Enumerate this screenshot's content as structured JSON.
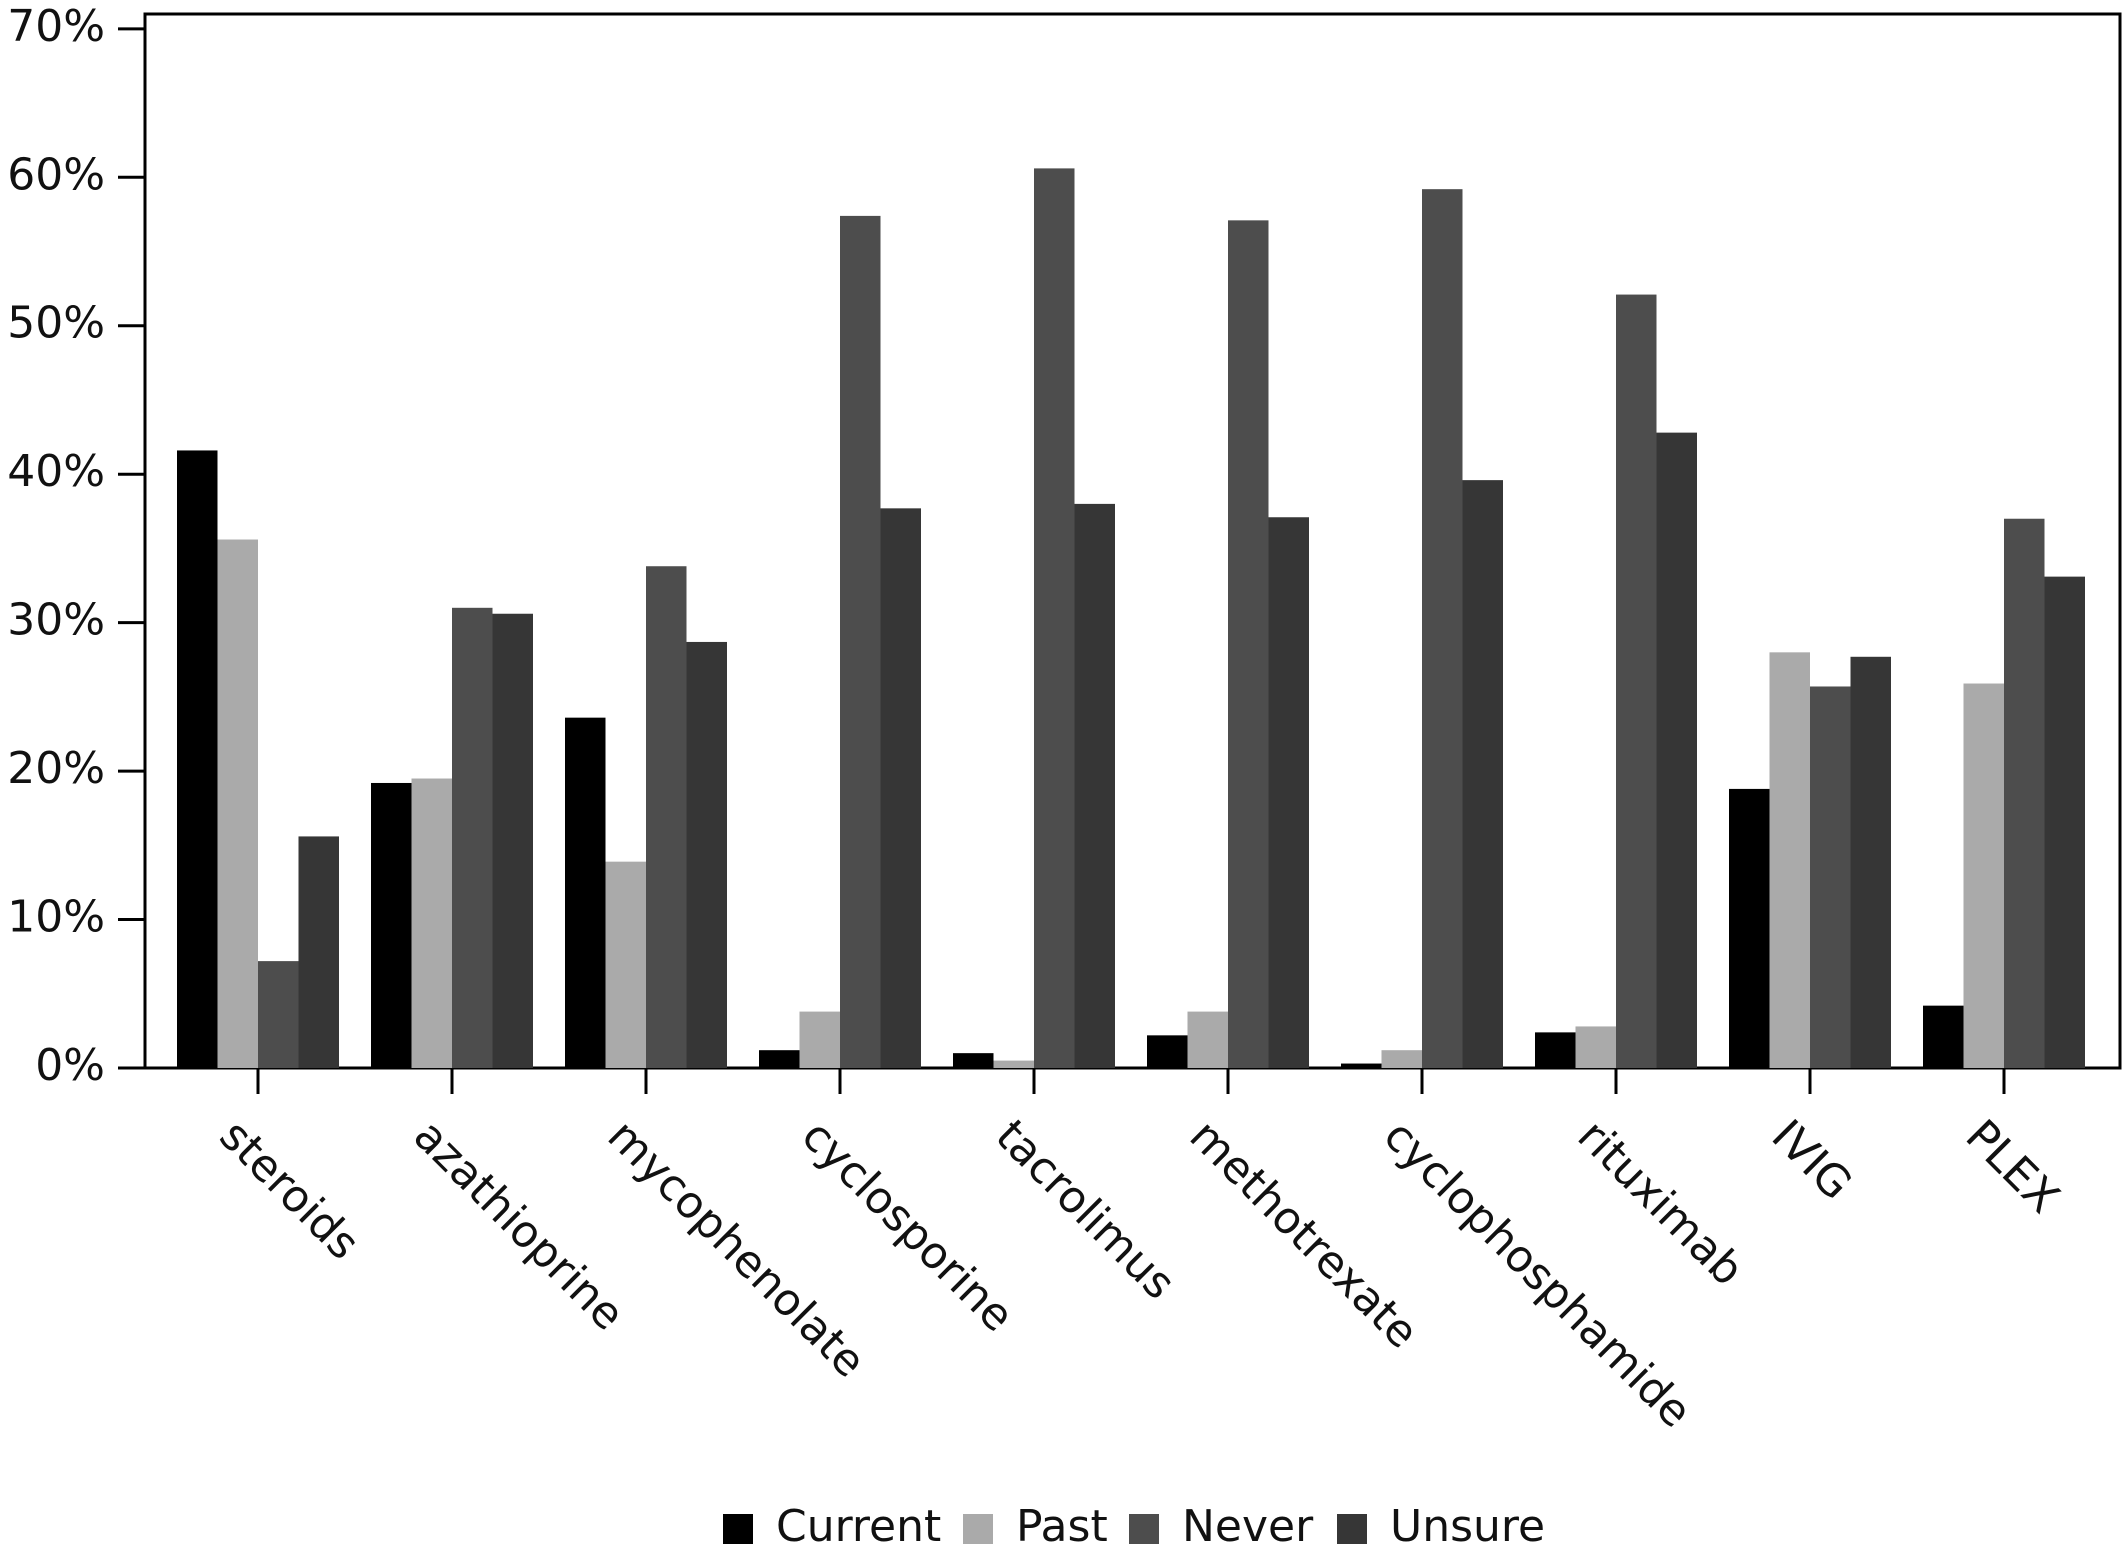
{
  "chart_data": {
    "type": "bar",
    "categories": [
      "steroids",
      "azathioprine",
      "mycophenolate",
      "cyclosporine",
      "tacrolimus",
      "methotrexate",
      "cyclophosphamide",
      "rituximab",
      "IVIG",
      "PLEX"
    ],
    "series": [
      {
        "name": "Current",
        "color": "#000000",
        "values": [
          41.6,
          19.2,
          23.6,
          1.2,
          1.0,
          2.2,
          0.3,
          2.4,
          18.8,
          4.2
        ]
      },
      {
        "name": "Past",
        "color": "#aaaaaa",
        "values": [
          35.6,
          19.5,
          13.9,
          3.8,
          0.5,
          3.8,
          1.2,
          2.8,
          28.0,
          25.9
        ]
      },
      {
        "name": "Never",
        "color": "#4d4d4d",
        "values": [
          7.2,
          31.0,
          33.8,
          57.4,
          60.6,
          57.1,
          59.2,
          52.1,
          25.7,
          37.0
        ]
      },
      {
        "name": "Unsure",
        "color": "#363636",
        "values": [
          15.6,
          30.6,
          28.7,
          37.7,
          38.0,
          37.1,
          39.6,
          42.8,
          27.7,
          33.1
        ]
      }
    ],
    "ylim": [
      0,
      71
    ],
    "yticks": [
      {
        "value": 0,
        "label": "0%"
      },
      {
        "value": 10,
        "label": "10%"
      },
      {
        "value": 20,
        "label": "20%"
      },
      {
        "value": 30,
        "label": "30%"
      },
      {
        "value": 40,
        "label": "40%"
      },
      {
        "value": 50,
        "label": "50%"
      },
      {
        "value": 60,
        "label": "60%"
      },
      {
        "value": 70,
        "label": "70%"
      }
    ],
    "grid": false,
    "legend": "bottom"
  }
}
